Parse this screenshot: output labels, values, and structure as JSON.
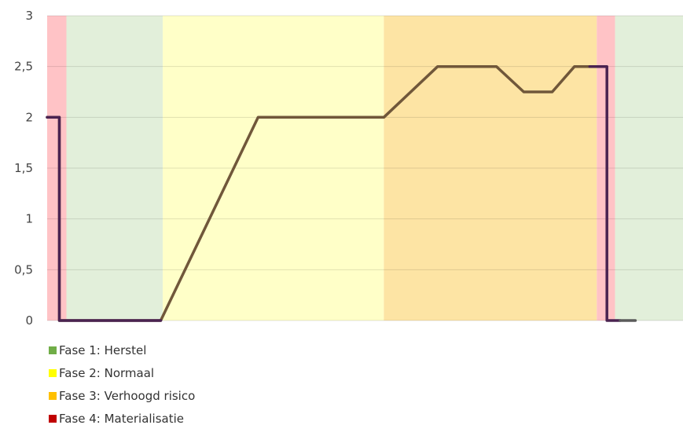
{
  "chart_data": {
    "type": "line",
    "title": "",
    "xlabel": "",
    "ylabel": "",
    "ylim": [
      0,
      3
    ],
    "yticks": [
      0,
      0.5,
      1,
      1.5,
      2,
      2.5,
      3
    ],
    "ytick_labels": [
      "0",
      "0,5",
      "1",
      "1,5",
      "2",
      "2,5",
      "3"
    ],
    "grid": true,
    "legend_placement": "bottom-left",
    "phases": [
      {
        "name": "Fase 1: Herstel",
        "color": "#70ad47",
        "band_color": "#e2efda"
      },
      {
        "name": "Fase 2: Normaal",
        "color": "#ffff00",
        "band_color": "#ffffc8"
      },
      {
        "name": "Fase 3: Verhoogd risico",
        "color": "#ffc000",
        "band_color": "#fde4a4"
      },
      {
        "name": "Fase 4: Materialisatie",
        "color": "#c00000",
        "band_color": "#ffc3c6"
      }
    ],
    "bands": [
      {
        "phase": 3,
        "x": [
          0,
          0.19
        ]
      },
      {
        "phase": 0,
        "x": [
          0.19,
          1.14
        ]
      },
      {
        "phase": 1,
        "x": [
          1.14,
          3.32
        ]
      },
      {
        "phase": 2,
        "x": [
          3.32,
          5.42
        ]
      },
      {
        "phase": 3,
        "x": [
          5.42,
          5.6
        ]
      },
      {
        "phase": 0,
        "x": [
          5.6,
          6.27
        ]
      }
    ],
    "x_range": [
      0,
      6.27
    ],
    "series": [
      {
        "color": "#70573a",
        "x": [
          0,
          0.12,
          0.12,
          1.12,
          2.08,
          3.32,
          3.85,
          4.43,
          4.7,
          4.98,
          5.2,
          5.42
        ],
        "y": [
          2,
          2,
          0,
          0,
          2,
          2,
          2.5,
          2.5,
          2.25,
          2.25,
          2.5,
          2.5
        ]
      },
      {
        "color": "#4a2351",
        "x": [
          0,
          0.12,
          0.12,
          1.12
        ],
        "y": [
          2,
          2,
          0,
          0
        ]
      },
      {
        "color": "#4a2351",
        "x": [
          5.35,
          5.52,
          5.52,
          5.65
        ],
        "y": [
          2.5,
          2.5,
          0,
          0
        ]
      },
      {
        "color": "#5b5b5b",
        "x": [
          5.65,
          5.8
        ],
        "y": [
          0,
          0
        ]
      }
    ]
  }
}
